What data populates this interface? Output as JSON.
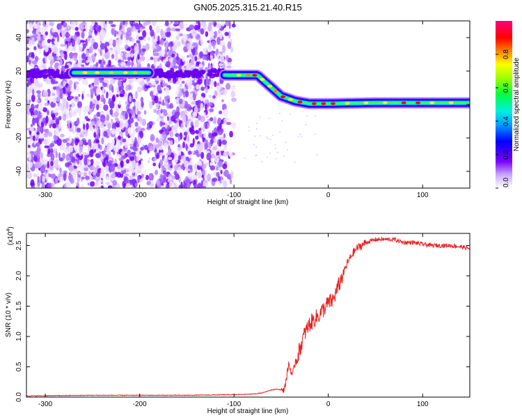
{
  "figure": {
    "title": "GN05.2025.315.21.40.R15"
  },
  "chart_data": [
    {
      "type": "heatmap",
      "title": "GN05.2025.315.21.40.R15",
      "xlabel": "Height of straight line (km)",
      "ylabel": "Frequency (Hz)",
      "xlim": [
        -320,
        150
      ],
      "ylim": [
        -50,
        50
      ],
      "xticks": [
        -300,
        -200,
        -100,
        0,
        100
      ],
      "xtick_labels": [
        "-300",
        "-200",
        "-100",
        "0",
        "100"
      ],
      "yticks": [
        -40,
        -20,
        0,
        20,
        40
      ],
      "ytick_labels": [
        "-40",
        "-20",
        "0",
        "20",
        "40"
      ],
      "colorbar": {
        "label": "Normalized spectral amplitude",
        "range": [
          0,
          1
        ],
        "ticks": [
          0.0,
          0.2,
          0.4,
          0.6,
          0.8
        ],
        "tick_labels": [
          "0.0",
          "0.2",
          "0.4",
          "0.6",
          "0.8"
        ],
        "colormap": "rainbow",
        "colors": [
          "#ffffff",
          "#7b00ff",
          "#0000ff",
          "#00e0ff",
          "#00ff40",
          "#ffff00",
          "#ff8000",
          "#ff0000",
          "#ff0080"
        ]
      },
      "ridge": {
        "x": [
          -270,
          -190,
          -105,
          -75,
          -50,
          -35,
          -20,
          0,
          50,
          100,
          150
        ],
        "y": [
          19,
          19,
          17.5,
          17.5,
          5,
          2,
          0.5,
          0.5,
          1,
          1,
          1
        ]
      },
      "noise_region": {
        "x": [
          -320,
          -100
        ],
        "y": [
          -50,
          50
        ]
      },
      "grid": false
    },
    {
      "type": "line",
      "xlabel": "Height of straight line (km)",
      "ylabel": "SNR (10 * v/v)",
      "y_multiplier_label": "(x10",
      "y_multiplier_exp": "4",
      "y_multiplier_close": ")",
      "xlim": [
        -320,
        150
      ],
      "ylim": [
        0,
        2.7
      ],
      "xticks": [
        -300,
        -200,
        -100,
        0,
        100
      ],
      "xtick_labels": [
        "-300",
        "-200",
        "-100",
        "0",
        "100"
      ],
      "yticks": [
        0,
        0.5,
        1.0,
        1.5,
        2.0,
        2.5
      ],
      "ytick_labels": [
        "0.0",
        "0.5",
        "1.0",
        "1.5",
        "2.0",
        "2.5"
      ],
      "color": "#e82020",
      "x": [
        -320,
        -250,
        -150,
        -100,
        -80,
        -70,
        -60,
        -55,
        -50,
        -48,
        -45,
        -42,
        -40,
        -38,
        -35,
        -32,
        -30,
        -25,
        -20,
        -15,
        -10,
        -5,
        0,
        5,
        10,
        15,
        20,
        25,
        30,
        40,
        50,
        60,
        70,
        80,
        90,
        100,
        110,
        120,
        130,
        140,
        150
      ],
      "y": [
        0.02,
        0.03,
        0.03,
        0.04,
        0.05,
        0.07,
        0.12,
        0.13,
        0.12,
        0.08,
        0.25,
        0.55,
        0.45,
        0.35,
        0.58,
        0.7,
        0.8,
        1.05,
        1.2,
        1.28,
        1.35,
        1.45,
        1.55,
        1.6,
        1.8,
        2.0,
        2.2,
        2.35,
        2.45,
        2.55,
        2.6,
        2.6,
        2.6,
        2.55,
        2.55,
        2.52,
        2.5,
        2.5,
        2.5,
        2.48,
        2.45
      ],
      "grid": false
    }
  ]
}
